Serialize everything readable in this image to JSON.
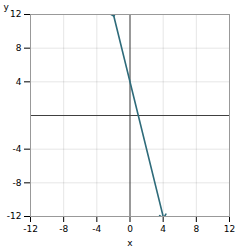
{
  "chart_data": {
    "type": "line",
    "xlabel": "x",
    "ylabel": "y",
    "x": [
      -2,
      4
    ],
    "values": [
      12,
      -12
    ],
    "color": "#2e6b7a",
    "xlim": [
      -12,
      12
    ],
    "ylim": [
      -12,
      12
    ],
    "xticks": [
      -12,
      -8,
      -4,
      0,
      4,
      8,
      12
    ],
    "yticks": [
      -12,
      -8,
      -4,
      4,
      8,
      12
    ],
    "grid": true
  }
}
